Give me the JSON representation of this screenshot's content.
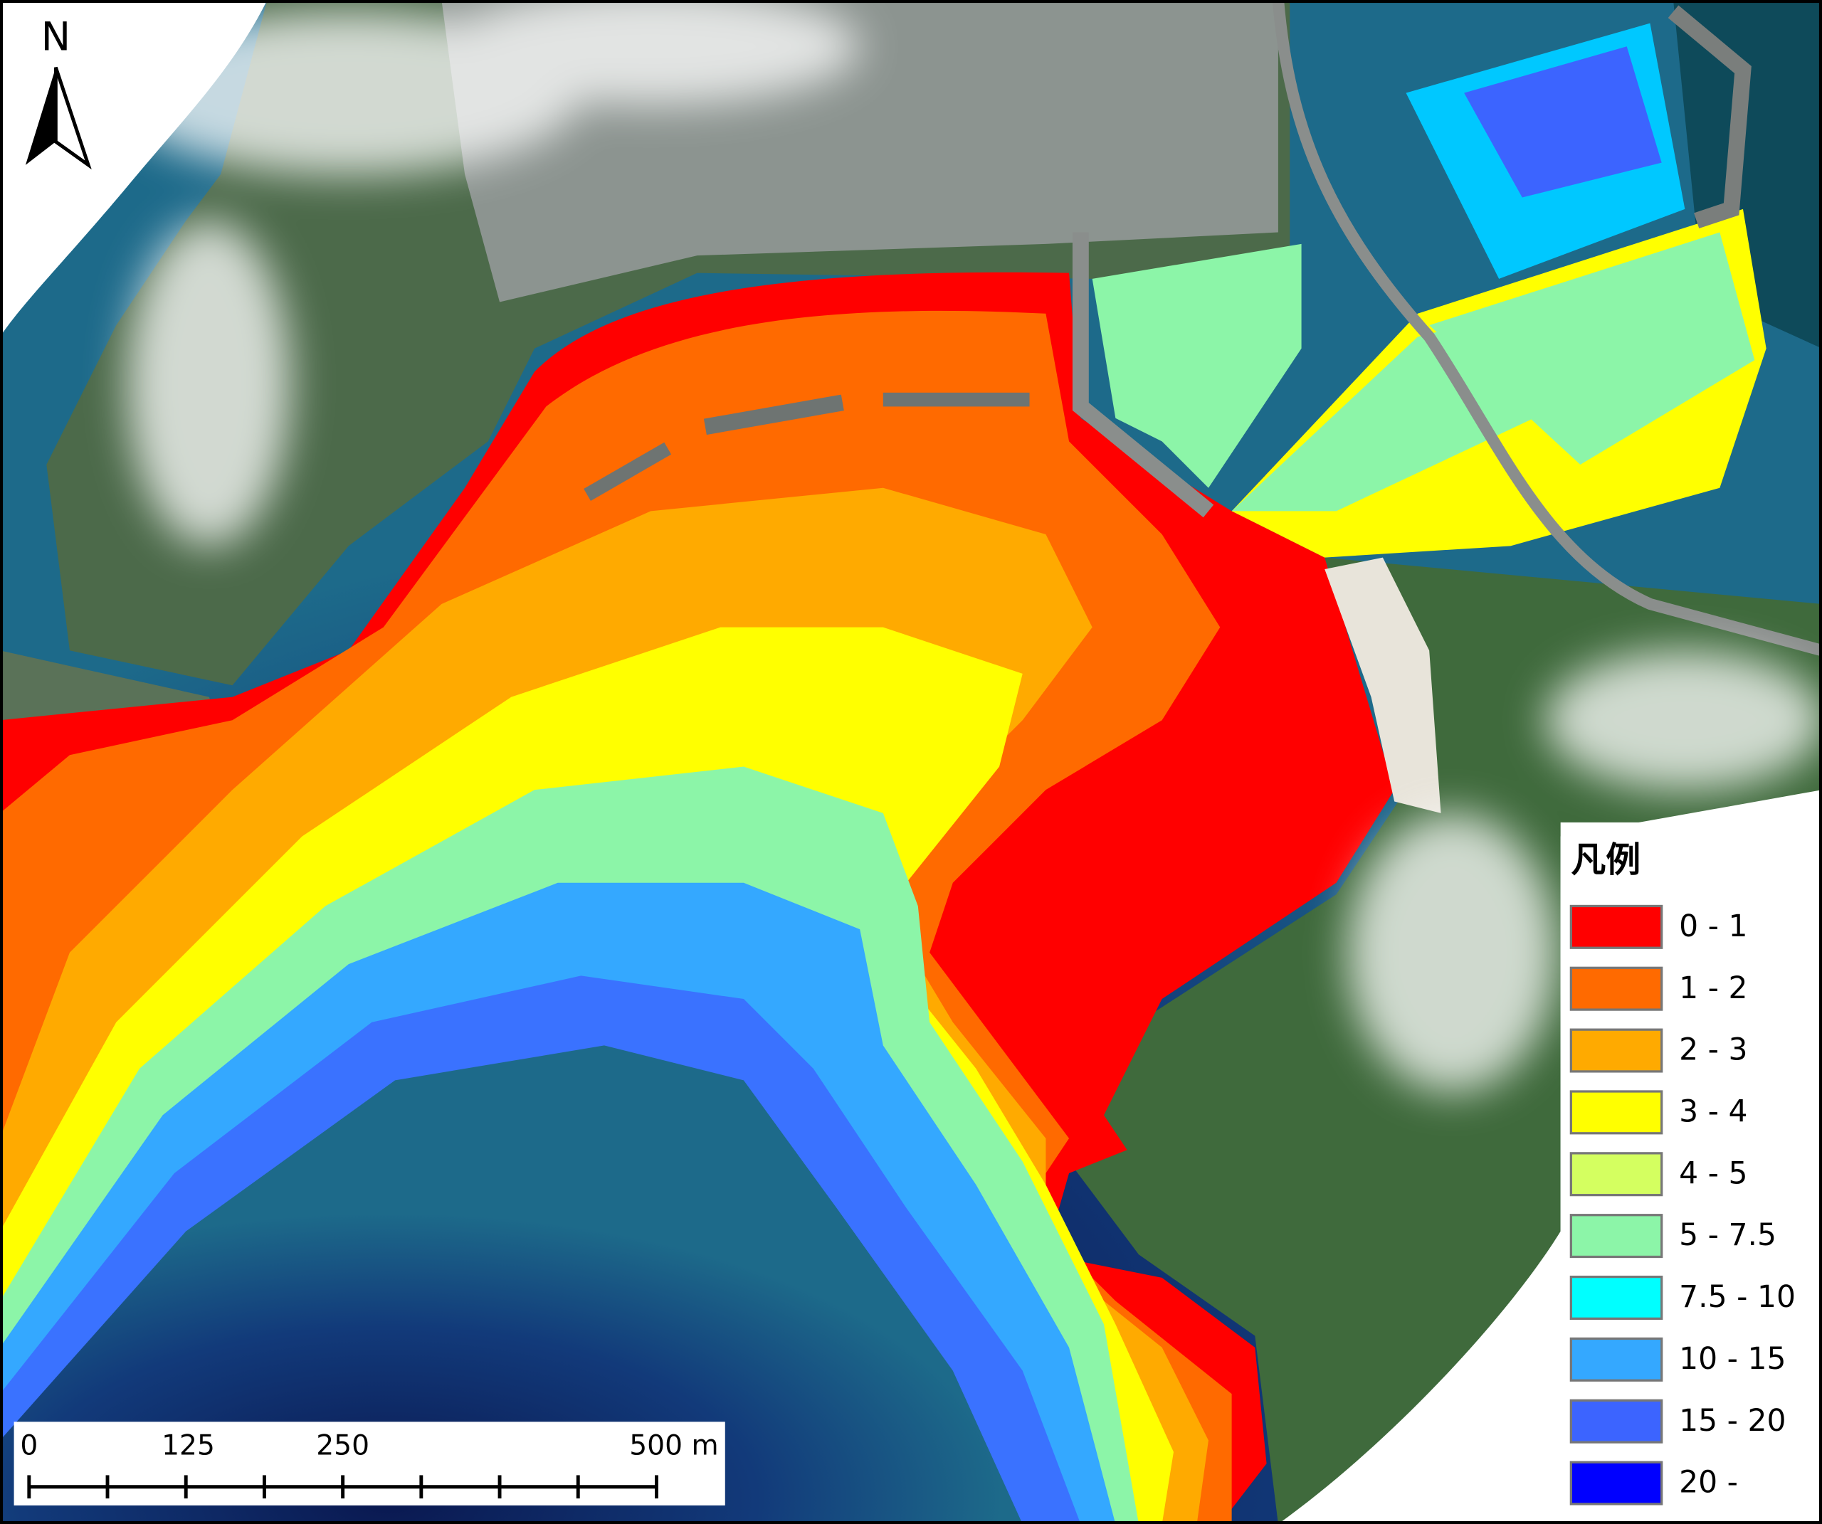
{
  "north": "N",
  "legend": {
    "title": "凡例",
    "items": [
      {
        "label": "0 - 1",
        "color": "#ff0000"
      },
      {
        "label": "1 - 2",
        "color": "#ff6a00"
      },
      {
        "label": "2 - 3",
        "color": "#ffaa00"
      },
      {
        "label": "3 - 4",
        "color": "#ffff00"
      },
      {
        "label": "4 - 5",
        "color": "#d4ff60"
      },
      {
        "label": "5 - 7.5",
        "color": "#8cf5a8"
      },
      {
        "label": "7.5 - 10",
        "color": "#00ffff"
      },
      {
        "label": "10 - 15",
        "color": "#34a8ff"
      },
      {
        "label": "15 - 20",
        "color": "#3c64ff"
      },
      {
        "label": "20 -",
        "color": "#0000ff"
      }
    ]
  },
  "scale_bar": {
    "labels": [
      "0",
      "125",
      "250",
      "500 m"
    ]
  }
}
